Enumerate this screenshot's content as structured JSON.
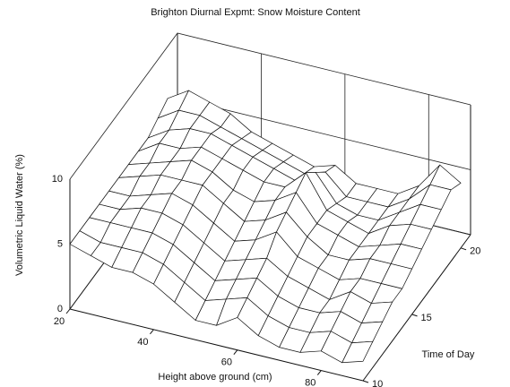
{
  "chart_data": {
    "type": "surface",
    "title": "Brighton Diurnal Expmt: Snow Moisture Content",
    "xlabel": "Height above ground (cm)",
    "ylabel": "Time of Day",
    "zlabel": "Volumetric Liquid Water (%)",
    "x": [
      20,
      25,
      30,
      35,
      40,
      45,
      50,
      55,
      60,
      65,
      70,
      75,
      80,
      85,
      90
    ],
    "y": [
      10,
      11,
      12,
      13,
      14,
      15,
      16,
      17,
      18,
      19,
      20
    ],
    "values": [
      [
        5,
        4.5,
        4,
        4,
        3.5,
        2.5,
        1.5,
        1.5,
        2.5,
        1.5,
        1,
        1,
        1.5,
        1,
        1.5
      ],
      [
        5,
        4.5,
        4.5,
        4.5,
        4,
        3,
        2,
        2.5,
        3,
        2,
        1.5,
        1.5,
        2,
        1.5,
        2
      ],
      [
        5,
        5,
        5,
        5,
        4.5,
        3.5,
        2.5,
        3,
        3.5,
        2.5,
        2,
        2,
        2.5,
        2,
        2.5
      ],
      [
        5,
        5,
        5.5,
        5.5,
        5,
        4,
        3,
        3.5,
        4,
        3,
        2.5,
        2,
        3,
        2.5,
        3
      ],
      [
        5,
        5,
        5.5,
        6,
        5.5,
        4.5,
        3.5,
        4,
        5,
        3.5,
        3,
        2.5,
        3,
        3,
        3
      ],
      [
        5,
        5.5,
        6,
        6,
        6,
        5,
        4,
        4.5,
        5.5,
        4,
        3,
        3,
        3.5,
        3.5,
        3.5
      ],
      [
        5,
        5.5,
        6,
        6.5,
        6,
        5,
        4.5,
        5,
        6,
        4,
        3.5,
        3,
        3.5,
        4,
        4
      ],
      [
        5,
        6,
        6,
        6.5,
        6,
        5.5,
        5,
        5,
        6.5,
        4,
        3.5,
        3,
        4,
        4.5,
        4.5
      ],
      [
        5,
        6,
        6.5,
        6.5,
        6,
        5.5,
        5,
        4.5,
        5.5,
        3.5,
        3,
        3,
        4,
        5,
        5
      ],
      [
        5.5,
        6.5,
        6.5,
        6,
        5.5,
        5,
        4.5,
        4,
        4.5,
        3,
        3,
        3,
        4,
        5.5,
        5.5
      ],
      [
        6,
        7,
        6.5,
        6,
        5,
        4.5,
        4,
        3.5,
        4,
        3,
        3,
        3,
        4,
        6,
        5
      ]
    ],
    "xlim": [
      20,
      90
    ],
    "xticks": [
      20,
      40,
      60,
      80
    ],
    "ylim": [
      10,
      21
    ],
    "yticks": [
      10,
      15,
      20
    ],
    "zlim": [
      0,
      10
    ],
    "zticks": [
      0,
      5,
      10
    ]
  }
}
